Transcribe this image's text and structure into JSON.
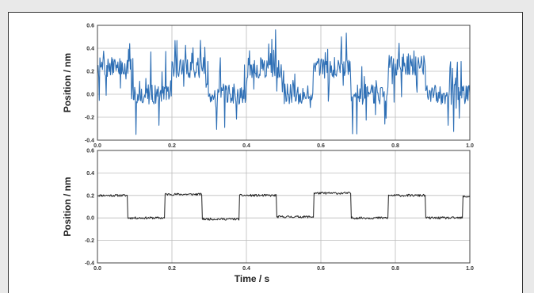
{
  "chart_data": [
    {
      "type": "line",
      "title": "",
      "xlabel": "",
      "ylabel": "Position / nm",
      "xlim": [
        0.0,
        1.0
      ],
      "ylim": [
        -0.4,
        0.6
      ],
      "x_ticks": [
        "0.0",
        "0.2",
        "0.4",
        "0.6",
        "0.8",
        "1.0"
      ],
      "y_ticks": [
        "0.6",
        "0.4",
        "0.2",
        "0.0",
        "-0.2",
        "-0.4"
      ],
      "grid": true,
      "series": [
        {
          "color": "#2e6fb5",
          "levels": [
            {
              "x0": 0.0,
              "x1": 0.09,
              "y": 0.23
            },
            {
              "x0": 0.09,
              "x1": 0.2,
              "y": 0.0
            },
            {
              "x0": 0.2,
              "x1": 0.29,
              "y": 0.23
            },
            {
              "x0": 0.29,
              "x1": 0.4,
              "y": 0.0
            },
            {
              "x0": 0.4,
              "x1": 0.5,
              "y": 0.23
            },
            {
              "x0": 0.5,
              "x1": 0.58,
              "y": 0.0
            },
            {
              "x0": 0.58,
              "x1": 0.68,
              "y": 0.23
            },
            {
              "x0": 0.68,
              "x1": 0.78,
              "y": 0.0
            },
            {
              "x0": 0.78,
              "x1": 0.88,
              "y": 0.25
            },
            {
              "x0": 0.88,
              "x1": 1.0,
              "y": 0.0
            }
          ]
        }
      ]
    },
    {
      "type": "line",
      "title": "",
      "xlabel": "Time / s",
      "ylabel": "Position / nm",
      "xlim": [
        0.0,
        1.0
      ],
      "ylim": [
        -0.4,
        0.6
      ],
      "x_ticks": [
        "0.0",
        "0.2",
        "0.4",
        "0.6",
        "0.8",
        "1.0"
      ],
      "y_ticks": [
        "0.6",
        "0.4",
        "0.2",
        "0.0",
        "-0.2",
        "-0.4"
      ],
      "grid": true,
      "series": [
        {
          "color": "#222222",
          "levels": [
            {
              "x0": 0.0,
              "x1": 0.08,
              "y": 0.2
            },
            {
              "x0": 0.08,
              "x1": 0.18,
              "y": 0.0
            },
            {
              "x0": 0.18,
              "x1": 0.28,
              "y": 0.21
            },
            {
              "x0": 0.28,
              "x1": 0.38,
              "y": -0.01
            },
            {
              "x0": 0.38,
              "x1": 0.48,
              "y": 0.2
            },
            {
              "x0": 0.48,
              "x1": 0.58,
              "y": 0.01
            },
            {
              "x0": 0.58,
              "x1": 0.68,
              "y": 0.22
            },
            {
              "x0": 0.68,
              "x1": 0.78,
              "y": 0.0
            },
            {
              "x0": 0.78,
              "x1": 0.88,
              "y": 0.2
            },
            {
              "x0": 0.88,
              "x1": 0.98,
              "y": 0.0
            },
            {
              "x0": 0.98,
              "x1": 1.0,
              "y": 0.19
            }
          ]
        }
      ]
    }
  ]
}
